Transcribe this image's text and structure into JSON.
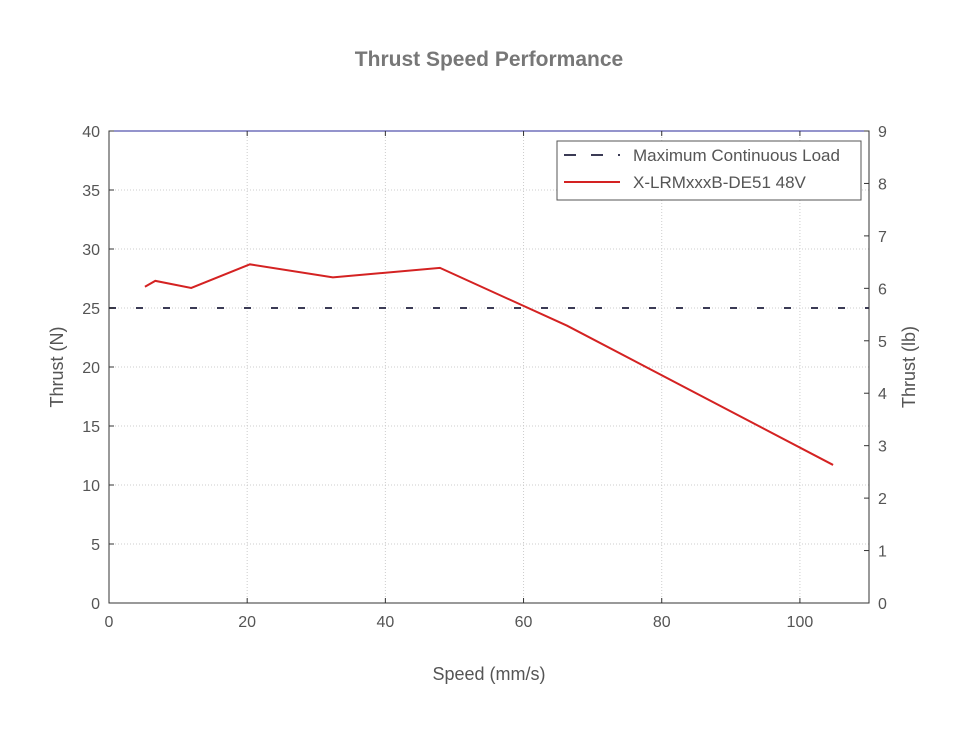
{
  "chart_data": {
    "type": "line",
    "title": "Thrust Speed Performance",
    "xlabel": "Speed (mm/s)",
    "ylabel": "Thrust (N)",
    "y2label": "Thrust (lb)",
    "xlim": [
      0,
      110
    ],
    "ylim": [
      0,
      40
    ],
    "y2lim": [
      0,
      9
    ],
    "xticks": [
      0,
      20,
      40,
      60,
      80,
      100
    ],
    "yticks": [
      0,
      5,
      10,
      15,
      20,
      25,
      30,
      35,
      40
    ],
    "y2ticks": [
      0,
      1,
      2,
      3,
      4,
      5,
      6,
      7,
      8,
      9
    ],
    "grid": true,
    "legend_position": "top-right",
    "series": [
      {
        "name": "Maximum Continuous Load",
        "style": "dashed",
        "color": "#3b3b55",
        "x": [
          0,
          110
        ],
        "y": [
          25,
          25
        ]
      },
      {
        "name": "X-LRMxxxB-DE51 48V",
        "style": "solid",
        "color": "#d42222",
        "x": [
          5.2,
          6.7,
          11.9,
          20.4,
          32.4,
          47.9,
          66.3,
          104.8
        ],
        "y": [
          26.8,
          27.3,
          26.7,
          28.7,
          27.6,
          28.4,
          23.5,
          11.7
        ]
      }
    ]
  }
}
